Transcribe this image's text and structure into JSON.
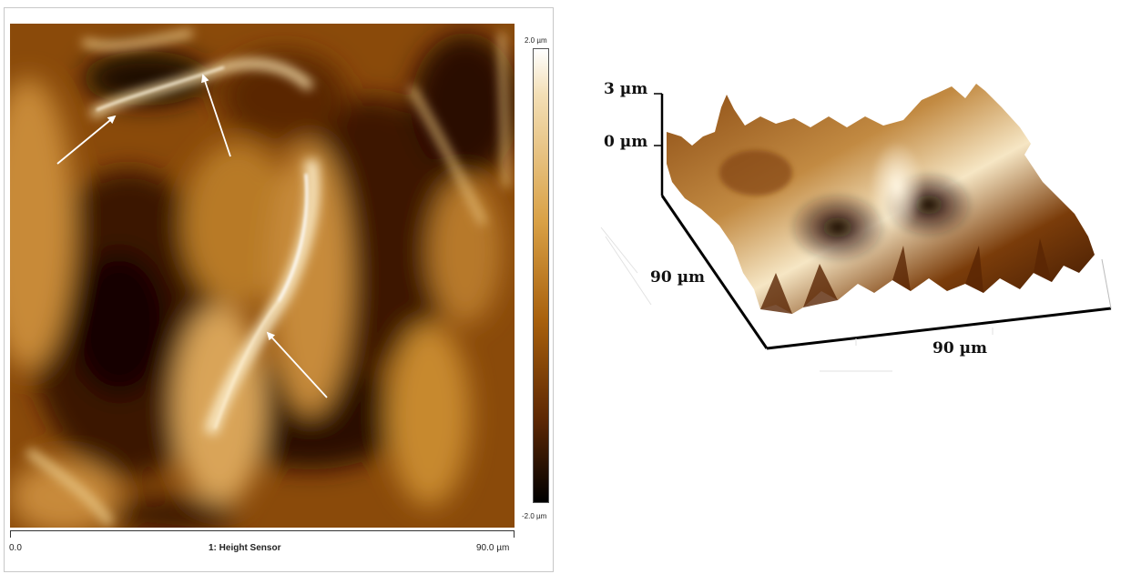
{
  "afm_image": {
    "channel_label": "1: Height Sensor",
    "x_axis_min": "0.0",
    "x_axis_max": "90.0 µm",
    "colorbar_max": "2.0 µm",
    "colorbar_min": "-2.0 µm",
    "colormap": [
      "#000000",
      "#5c2704",
      "#a8600c",
      "#d9a146",
      "#f3dfb6",
      "#ffffff"
    ],
    "arrow_color": "#ffffff"
  },
  "surface_3d": {
    "z_top_label": "3 µm",
    "z_zero_label": "0 µm",
    "y_size_label": "90 µm",
    "x_size_label": "90 µm"
  }
}
